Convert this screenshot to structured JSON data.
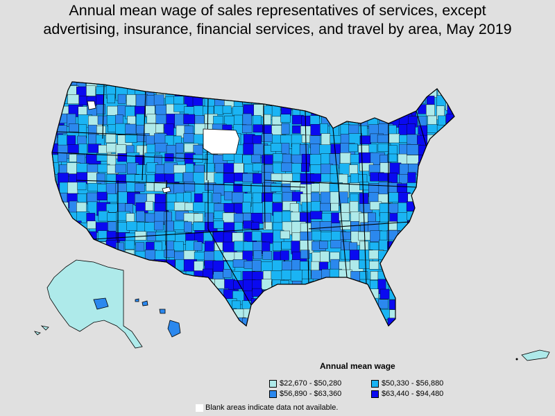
{
  "title_lines": [
    "Annual mean wage of sales representatives of services, except",
    "advertising, insurance, financial services, and travel by area, May 2019"
  ],
  "legend": {
    "title": "Annual mean wage",
    "items": [
      {
        "label": "$22,670 - $50,280",
        "color": "#aeeaea"
      },
      {
        "label": "$50,330 - $56,880",
        "color": "#1ab4f4"
      },
      {
        "label": "$56,890 - $63,360",
        "color": "#2b88ee"
      },
      {
        "label": "$63,440 - $94,480",
        "color": "#0a0af0"
      }
    ]
  },
  "note": "Blank areas indicate data not available.",
  "colors": {
    "background": "#e0e0e0",
    "no_data": "#ffffff",
    "border": "#000000"
  }
}
